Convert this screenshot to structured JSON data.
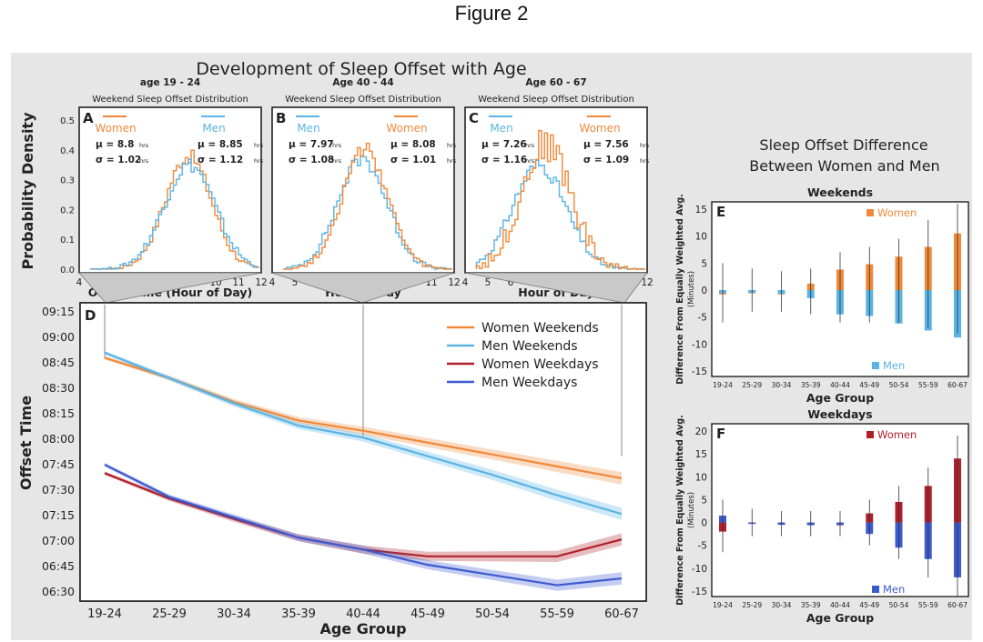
{
  "figure_heading": "Figure 2",
  "main_title": "Development of Sleep Offset with Age",
  "right_title_line1": "Sleep Offset Difference",
  "right_title_line2": "Between Women and Men",
  "colors": {
    "women_weekend": "#f0893a",
    "men_weekend": "#5ab4e5",
    "women_weekday": "#b0202a",
    "men_weekday": "#3d5bd0",
    "panel_bg": "#e6e6e6"
  },
  "chart_data": [
    {
      "id": "A",
      "type": "line",
      "title": "age 19 - 24",
      "subtitle": "Weekend Sleep Offset Distribution",
      "xlabel": "Offset Time (Hour of Day)",
      "ylabel": "Probability Density",
      "xlim": [
        4,
        12
      ],
      "ylim": [
        0,
        0.5
      ],
      "xticks": [
        4,
        5,
        6,
        7,
        8,
        9,
        10,
        11,
        12
      ],
      "yticks": [
        "0.0",
        "0.1",
        "0.2",
        "0.3",
        "0.4",
        "0.5"
      ],
      "legend": [
        {
          "name": "Women",
          "color": "women_weekend"
        },
        {
          "name": "Men",
          "color": "men_weekend"
        }
      ],
      "stats": [
        {
          "mu": "μ = 8.8",
          "sigma": "σ = 1.02",
          "unit": "hrs"
        },
        {
          "mu": "μ = 8.85",
          "sigma": "σ = 1.12",
          "unit": "hrs"
        }
      ],
      "series": [
        {
          "name": "Women",
          "mu": 8.8,
          "sigma": 1.02,
          "peak": 0.38
        },
        {
          "name": "Men",
          "mu": 8.85,
          "sigma": 1.12,
          "peak": 0.35
        }
      ]
    },
    {
      "id": "B",
      "type": "line",
      "title": "Age 40 - 44",
      "subtitle": "Weekend Sleep Offset Distribution",
      "xlabel": "Hour of Day",
      "xlim": [
        4,
        12
      ],
      "ylim": [
        0,
        0.5
      ],
      "xticks": [
        4,
        5,
        6,
        7,
        8,
        9,
        10,
        11,
        12
      ],
      "legend": [
        {
          "name": "Men",
          "color": "men_weekend"
        },
        {
          "name": "Women",
          "color": "women_weekend"
        }
      ],
      "stats": [
        {
          "mu": "μ = 7.97",
          "sigma": "σ = 1.08",
          "unit": "hrs"
        },
        {
          "mu": "μ = 8.08",
          "sigma": "σ = 1.01",
          "unit": "hrs"
        }
      ],
      "series": [
        {
          "name": "Men",
          "mu": 7.97,
          "sigma": 1.08,
          "peak": 0.37
        },
        {
          "name": "Women",
          "mu": 8.08,
          "sigma": 1.01,
          "peak": 0.4
        }
      ]
    },
    {
      "id": "C",
      "type": "line",
      "title": "Age 60 - 67",
      "subtitle": "Weekend Sleep Offset Distribution",
      "xlabel": "Hour of Day",
      "xlim": [
        4,
        12
      ],
      "ylim": [
        0,
        0.5
      ],
      "xticks": [
        4,
        5,
        6,
        7,
        8,
        9,
        10,
        11,
        12
      ],
      "legend": [
        {
          "name": "Men",
          "color": "men_weekend"
        },
        {
          "name": "Women",
          "color": "women_weekend"
        }
      ],
      "stats": [
        {
          "mu": "μ = 7.26",
          "sigma": "σ = 1.16",
          "unit": "hrs"
        },
        {
          "mu": "μ = 7.56",
          "sigma": "σ = 1.09",
          "unit": "hrs"
        }
      ],
      "series": [
        {
          "name": "Men",
          "mu": 7.26,
          "sigma": 1.16,
          "peak": 0.35
        },
        {
          "name": "Women",
          "mu": 7.56,
          "sigma": 1.09,
          "peak": 0.42
        }
      ]
    },
    {
      "id": "D",
      "type": "line",
      "xlabel": "Age Group",
      "ylabel": "Offset Time",
      "categories": [
        "19-24",
        "25-29",
        "30-34",
        "35-39",
        "40-44",
        "45-49",
        "50-54",
        "55-59",
        "60-67"
      ],
      "yticks": [
        "06:30",
        "06:45",
        "07:00",
        "07:15",
        "07:30",
        "07:45",
        "08:00",
        "08:15",
        "08:30",
        "08:45",
        "09:00",
        "09:15"
      ],
      "ylim_minutes": [
        390,
        555
      ],
      "series": [
        {
          "name": "Women Weekends",
          "color": "women_weekend",
          "values_minutes": [
            528,
            516,
            502,
            491,
            485,
            478,
            471,
            464,
            457
          ]
        },
        {
          "name": "Men Weekends",
          "color": "men_weekend",
          "values_minutes": [
            531,
            516,
            501,
            488,
            481,
            470,
            459,
            447,
            436
          ]
        },
        {
          "name": "Women Weekdays",
          "color": "women_weekday",
          "values_minutes": [
            460,
            445,
            433,
            422,
            415,
            411,
            411,
            411,
            421
          ]
        },
        {
          "name": "Men Weekdays",
          "color": "men_weekday",
          "values_minutes": [
            465,
            446,
            434,
            422,
            415,
            406,
            400,
            394,
            398
          ]
        }
      ]
    },
    {
      "id": "E",
      "type": "bar",
      "title": "Weekends",
      "xlabel": "Age Group",
      "ylabel": "Difference From Equally Weighted Avg.",
      "ylabel_unit": "(Minutes)",
      "categories": [
        "19-24",
        "25-29",
        "30-34",
        "35-39",
        "40-44",
        "45-49",
        "50-54",
        "55-59",
        "60-67"
      ],
      "ylim": [
        -15,
        15
      ],
      "yticks": [
        -15,
        -10,
        -5,
        0,
        5,
        10,
        15
      ],
      "legend": [
        "Women",
        "Men"
      ],
      "women": [
        -0.8,
        -0.6,
        -0.8,
        1.2,
        3.8,
        4.8,
        6.2,
        8.0,
        10.5
      ],
      "men": [
        -0.6,
        -0.5,
        -0.7,
        -1.5,
        -4.5,
        -4.8,
        -6.2,
        -7.5,
        -8.8
      ],
      "women_err": [
        [
          -6,
          5
        ],
        [
          -4,
          4
        ],
        [
          -4,
          3.5
        ],
        [
          -4.5,
          4
        ],
        [
          -6,
          7
        ],
        [
          -6,
          8
        ],
        [
          -6,
          9.5
        ],
        [
          -7,
          13
        ],
        [
          -8,
          16
        ]
      ],
      "men_err": [
        [
          -6,
          5
        ],
        [
          -4,
          4
        ],
        [
          -4,
          3.5
        ],
        [
          -4.5,
          4
        ],
        [
          -8,
          6
        ],
        [
          -8.5,
          6
        ],
        [
          -9,
          8
        ],
        [
          -12,
          9
        ],
        [
          -13,
          14
        ]
      ]
    },
    {
      "id": "F",
      "type": "bar",
      "title": "Weekdays",
      "xlabel": "Age Group",
      "ylabel": "Difference From Equally Weighted Avg.",
      "ylabel_unit": "(Minutes)",
      "categories": [
        "19-24",
        "25-29",
        "30-34",
        "35-39",
        "40-44",
        "45-49",
        "50-54",
        "55-59",
        "60-67"
      ],
      "ylim": [
        -15,
        20
      ],
      "yticks": [
        -15,
        -10,
        -5,
        0,
        5,
        10,
        15,
        20
      ],
      "legend": [
        "Women",
        "Men"
      ],
      "women": [
        -2.0,
        -0.3,
        -0.5,
        -0.5,
        -0.6,
        2.0,
        4.5,
        8.0,
        14.0
      ],
      "men": [
        1.5,
        -0.3,
        -0.5,
        -0.6,
        -0.5,
        -2.5,
        -5.5,
        -8.0,
        -12.0
      ],
      "women_err": [
        [
          -6.5,
          5
        ],
        [
          -3,
          3
        ],
        [
          -3,
          2.5
        ],
        [
          -3,
          2.5
        ],
        [
          -3,
          2.5
        ],
        [
          -5,
          5
        ],
        [
          -8,
          8
        ],
        [
          -12,
          12
        ],
        [
          -16,
          19
        ]
      ],
      "men_err": [
        [
          -6.5,
          5
        ],
        [
          -3,
          3
        ],
        [
          -3,
          2.5
        ],
        [
          -3,
          2.5
        ],
        [
          -3,
          2.5
        ],
        [
          -5,
          4
        ],
        [
          -8,
          7
        ],
        [
          -12,
          10
        ],
        [
          -16,
          19
        ]
      ]
    }
  ]
}
